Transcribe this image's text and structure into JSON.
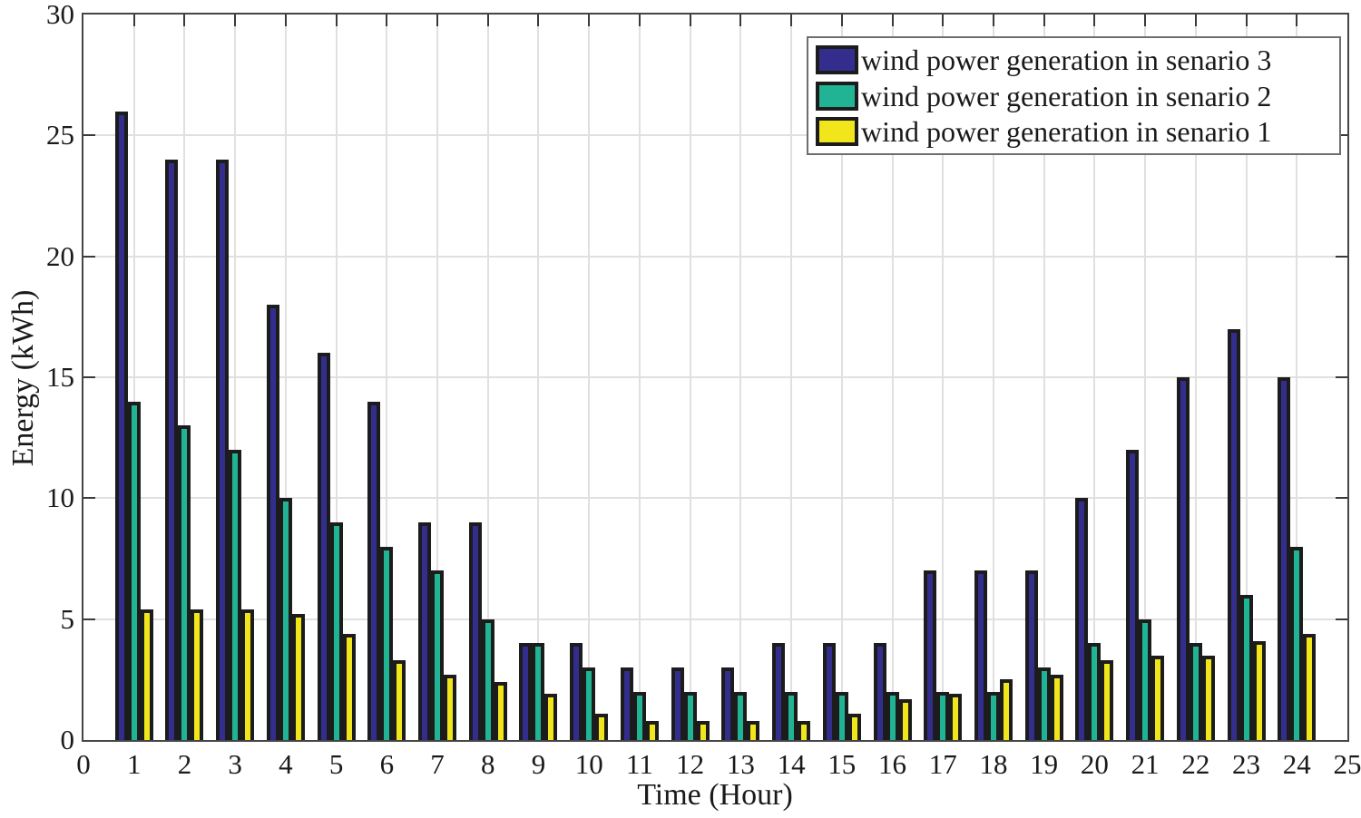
{
  "chart_data": {
    "type": "bar",
    "title": "",
    "xlabel": "Time (Hour)",
    "ylabel": "Energy (kWh)",
    "xlim": [
      0,
      25
    ],
    "ylim": [
      0,
      30
    ],
    "x_ticks": [
      0,
      1,
      2,
      3,
      4,
      5,
      6,
      7,
      8,
      9,
      10,
      11,
      12,
      13,
      14,
      15,
      16,
      17,
      18,
      19,
      20,
      21,
      22,
      23,
      24,
      25
    ],
    "y_ticks": [
      0,
      5,
      10,
      15,
      20,
      25,
      30
    ],
    "grid": true,
    "legend_position": "top-right",
    "categories": [
      1,
      2,
      3,
      4,
      5,
      6,
      7,
      8,
      9,
      10,
      11,
      12,
      13,
      14,
      15,
      16,
      17,
      18,
      19,
      20,
      21,
      22,
      23,
      24
    ],
    "series": [
      {
        "name": "wind power generation in senario 3",
        "color": "#332E8E",
        "values": [
          26,
          24,
          24,
          18,
          16,
          14,
          9,
          9,
          4,
          4,
          3,
          3,
          3,
          4,
          4,
          4,
          7,
          7,
          7,
          10,
          12,
          15,
          17,
          15
        ]
      },
      {
        "name": "wind power generation in senario 2",
        "color": "#21B494",
        "values": [
          14,
          13,
          12,
          10,
          9,
          8,
          7,
          5,
          4,
          3,
          2,
          2,
          2,
          2,
          2,
          2,
          2,
          2,
          3,
          4,
          5,
          4,
          6,
          8
        ]
      },
      {
        "name": "wind power generation in senario 1",
        "color": "#F1E61C",
        "values": [
          5.4,
          5.4,
          5.4,
          5.2,
          4.4,
          3.3,
          2.7,
          2.4,
          1.9,
          1.1,
          0.8,
          0.8,
          0.8,
          0.8,
          1.1,
          1.7,
          1.9,
          2.5,
          2.7,
          3.3,
          3.5,
          3.5,
          4.1,
          4.4
        ]
      }
    ],
    "bar_outline_color": "#1c1c1c"
  }
}
